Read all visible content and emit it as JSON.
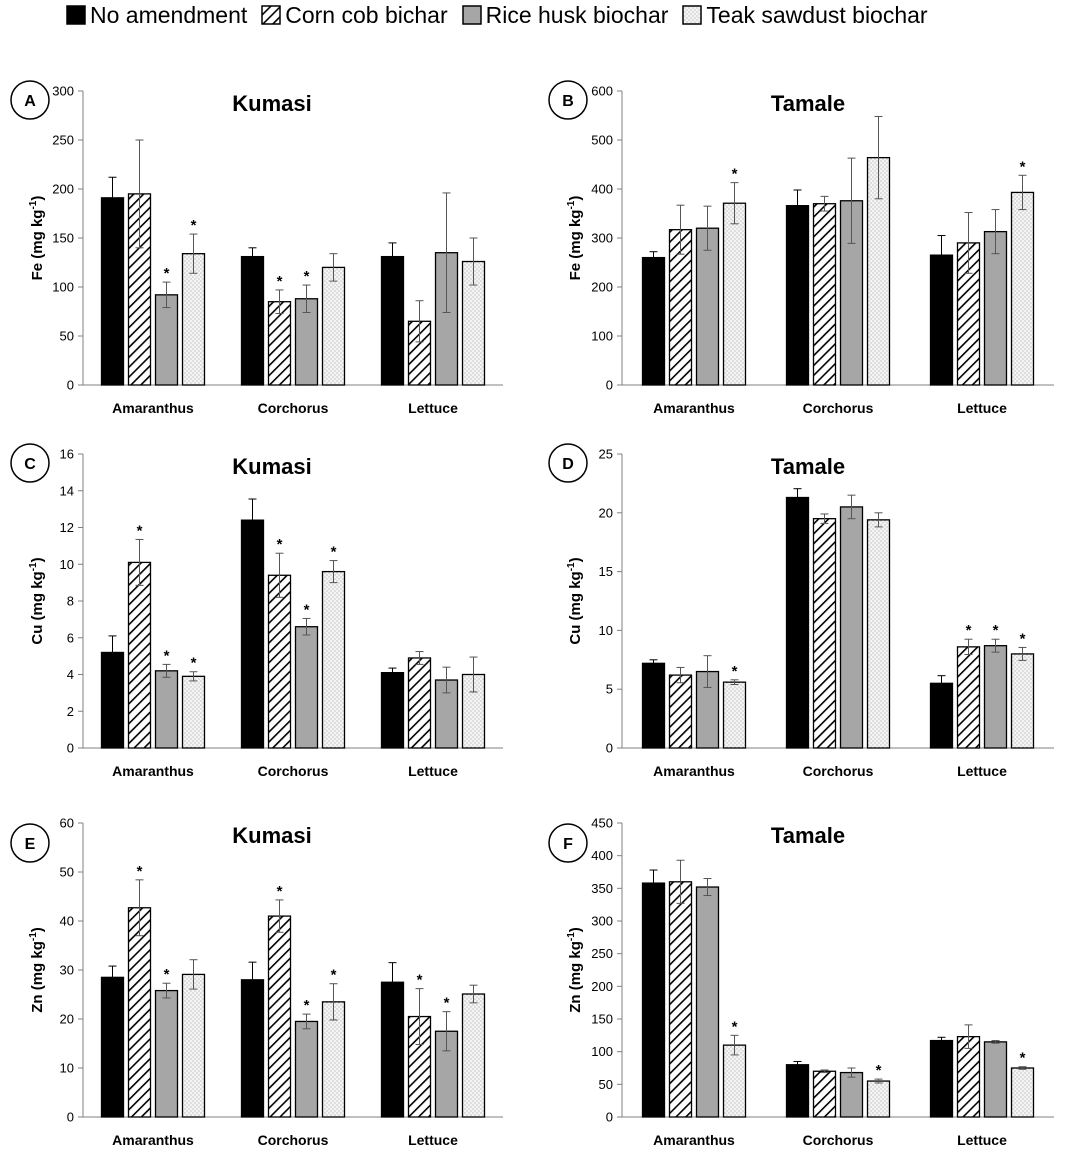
{
  "legend": [
    {
      "label": "No amendment",
      "fill": "solid"
    },
    {
      "label": "Corn cob bichar",
      "fill": "hatch"
    },
    {
      "label": "Rice husk biochar",
      "fill": "gray"
    },
    {
      "label": "Teak sawdust biochar",
      "fill": "dots"
    }
  ],
  "colors": {
    "solid": "#000000",
    "gray": "#a6a6a6",
    "hatch_bg": "#ffffff",
    "dots": "#f2f2f2",
    "axis": "#808080"
  },
  "chart_data": [
    {
      "type": "bar",
      "panel_label": "A",
      "title": "Kumasi",
      "ylabel_main": "Fe",
      "ylabel_unit": "(mg kg",
      "ylabel_sup": "-1",
      "ylabel_close": ")",
      "categories": [
        "Amaranthus",
        "Corchorus",
        "Lettuce"
      ],
      "ylim": [
        0,
        300
      ],
      "ytick_step": 50,
      "series": [
        {
          "name": "No amendment",
          "values": [
            191,
            131,
            131
          ],
          "errors": [
            21,
            9,
            14
          ],
          "sig": [
            false,
            false,
            false
          ]
        },
        {
          "name": "Corn cob bichar",
          "values": [
            195,
            85,
            65
          ],
          "errors": [
            55,
            12,
            21
          ],
          "sig": [
            false,
            true,
            false
          ]
        },
        {
          "name": "Rice husk biochar",
          "values": [
            92,
            88,
            135
          ],
          "errors": [
            13,
            14,
            61
          ],
          "sig": [
            true,
            true,
            false
          ]
        },
        {
          "name": "Teak sawdust biochar",
          "values": [
            134,
            120,
            126
          ],
          "errors": [
            20,
            14,
            24
          ],
          "sig": [
            true,
            false,
            false
          ]
        }
      ]
    },
    {
      "type": "bar",
      "panel_label": "B",
      "title": "Tamale",
      "ylabel_main": "Fe",
      "ylabel_unit": "(mg kg",
      "ylabel_sup": "-1",
      "ylabel_close": ")",
      "categories": [
        "Amaranthus",
        "Corchorus",
        "Lettuce"
      ],
      "ylim": [
        0,
        600
      ],
      "ytick_step": 100,
      "series": [
        {
          "name": "No amendment",
          "values": [
            260,
            366,
            265
          ],
          "errors": [
            12,
            32,
            40
          ],
          "sig": [
            false,
            false,
            false
          ]
        },
        {
          "name": "Corn cob bichar",
          "values": [
            317,
            370,
            290
          ],
          "errors": [
            50,
            15,
            62
          ],
          "sig": [
            false,
            false,
            false
          ]
        },
        {
          "name": "Rice husk biochar",
          "values": [
            320,
            376,
            313
          ],
          "errors": [
            45,
            87,
            45
          ],
          "sig": [
            false,
            false,
            false
          ]
        },
        {
          "name": "Teak sawdust biochar",
          "values": [
            371,
            464,
            393
          ],
          "errors": [
            42,
            84,
            35
          ],
          "sig": [
            true,
            false,
            true
          ]
        }
      ]
    },
    {
      "type": "bar",
      "panel_label": "C",
      "title": "Kumasi",
      "ylabel_main": "Cu",
      "ylabel_unit": "(mg kg",
      "ylabel_sup": "-1",
      "ylabel_close": ")",
      "categories": [
        "Amaranthus",
        "Corchorus",
        "Lettuce"
      ],
      "ylim": [
        0,
        16
      ],
      "ytick_step": 2,
      "series": [
        {
          "name": "No amendment",
          "values": [
            5.2,
            12.4,
            4.1
          ],
          "errors": [
            0.9,
            1.15,
            0.25
          ],
          "sig": [
            false,
            false,
            false
          ]
        },
        {
          "name": "Corn cob bichar",
          "values": [
            10.1,
            9.4,
            4.9
          ],
          "errors": [
            1.25,
            1.2,
            0.35
          ],
          "sig": [
            true,
            true,
            false
          ]
        },
        {
          "name": "Rice husk biochar",
          "values": [
            4.2,
            6.6,
            3.7
          ],
          "errors": [
            0.35,
            0.45,
            0.7
          ],
          "sig": [
            true,
            true,
            false
          ]
        },
        {
          "name": "Teak sawdust biochar",
          "values": [
            3.9,
            9.6,
            4.0
          ],
          "errors": [
            0.25,
            0.6,
            0.95
          ],
          "sig": [
            true,
            true,
            false
          ]
        }
      ]
    },
    {
      "type": "bar",
      "panel_label": "D",
      "title": "Tamale",
      "ylabel_main": "Cu",
      "ylabel_unit": "(mg kg",
      "ylabel_sup": "-1",
      "ylabel_close": ")",
      "categories": [
        "Amaranthus",
        "Corchorus",
        "Lettuce"
      ],
      "ylim": [
        0,
        25
      ],
      "ytick_step": 5,
      "series": [
        {
          "name": "No amendment",
          "values": [
            7.2,
            21.3,
            5.5
          ],
          "errors": [
            0.3,
            0.75,
            0.65
          ],
          "sig": [
            false,
            false,
            false
          ]
        },
        {
          "name": "Corn cob bichar",
          "values": [
            6.2,
            19.5,
            8.6
          ],
          "errors": [
            0.65,
            0.4,
            0.65
          ],
          "sig": [
            false,
            false,
            true
          ]
        },
        {
          "name": "Rice husk biochar",
          "values": [
            6.5,
            20.5,
            8.7
          ],
          "errors": [
            1.35,
            1.0,
            0.55
          ],
          "sig": [
            false,
            false,
            true
          ]
        },
        {
          "name": "Teak sawdust biochar",
          "values": [
            5.6,
            19.4,
            8.0
          ],
          "errors": [
            0.2,
            0.6,
            0.55
          ],
          "sig": [
            true,
            false,
            true
          ]
        }
      ]
    },
    {
      "type": "bar",
      "panel_label": "E",
      "title": "Kumasi",
      "ylabel_main": "Zn",
      "ylabel_unit": "(mg kg",
      "ylabel_sup": "-1",
      "ylabel_close": ")",
      "categories": [
        "Amaranthus",
        "Corchorus",
        "Lettuce"
      ],
      "ylim": [
        0,
        60
      ],
      "ytick_step": 10,
      "series": [
        {
          "name": "No amendment",
          "values": [
            28.5,
            28.0,
            27.5
          ],
          "errors": [
            2.3,
            3.6,
            4.0
          ],
          "sig": [
            false,
            false,
            false
          ]
        },
        {
          "name": "Corn cob bichar",
          "values": [
            42.7,
            41.0,
            20.5
          ],
          "errors": [
            5.7,
            3.3,
            5.7
          ],
          "sig": [
            true,
            true,
            true
          ]
        },
        {
          "name": "Rice husk biochar",
          "values": [
            25.8,
            19.5,
            17.5
          ],
          "errors": [
            1.5,
            1.5,
            4.0
          ],
          "sig": [
            true,
            true,
            true
          ]
        },
        {
          "name": "Teak sawdust biochar",
          "values": [
            29.1,
            23.5,
            25.1
          ],
          "errors": [
            3.0,
            3.7,
            1.8
          ],
          "sig": [
            false,
            true,
            false
          ]
        }
      ]
    },
    {
      "type": "bar",
      "panel_label": "F",
      "title": "Tamale",
      "ylabel_main": "Zn",
      "ylabel_unit": "(mg kg",
      "ylabel_sup": "-1",
      "ylabel_close": ")",
      "categories": [
        "Amaranthus",
        "Corchorus",
        "Lettuce"
      ],
      "ylim": [
        0,
        450
      ],
      "ytick_step": 50,
      "series": [
        {
          "name": "No amendment",
          "values": [
            358,
            80,
            117
          ],
          "errors": [
            20,
            5,
            5
          ],
          "sig": [
            false,
            false,
            false
          ]
        },
        {
          "name": "Corn cob bichar",
          "values": [
            360,
            70,
            123
          ],
          "errors": [
            33,
            2,
            18
          ],
          "sig": [
            false,
            false,
            false
          ]
        },
        {
          "name": "Rice husk biochar",
          "values": [
            352,
            68,
            115
          ],
          "errors": [
            13,
            7,
            2
          ],
          "sig": [
            false,
            false,
            false
          ]
        },
        {
          "name": "Teak sawdust biochar",
          "values": [
            110,
            55,
            75
          ],
          "errors": [
            15,
            3,
            2
          ],
          "sig": [
            true,
            true,
            true
          ]
        }
      ]
    }
  ]
}
